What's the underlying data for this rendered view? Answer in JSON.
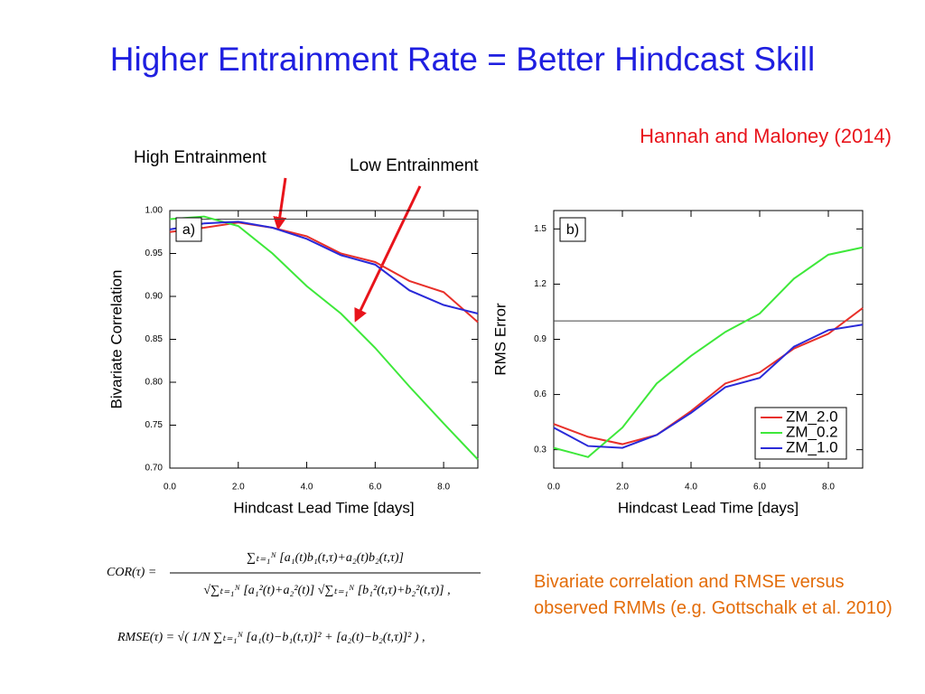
{
  "title": "Higher Entrainment Rate = Better Hindcast Skill",
  "citation": "Hannah and Maloney (2014)",
  "annotations": [
    "High Entrainment",
    "Low Entrainment"
  ],
  "caption": "Bivariate correlation and RMSE versus observed RMMs (e.g. Gottschalk et al. 2010)",
  "formulas": {
    "cor_lhs": "COR(τ) =",
    "cor_numerator": "∑ₜ₌₁ᴺ [a₁(t)b₁(t,τ)+a₂(t)b₂(t,τ)]",
    "cor_denominator": "√∑ₜ₌₁ᴺ [a₁²(t)+a₂²(t)] √∑ₜ₌₁ᴺ [b₁²(t,τ)+b₂²(t,τ)] ,",
    "rmse": "RMSE(τ) = √( 1/N ∑ₜ₌₁ᴺ [a₁(t)−b₁(t,τ)]² + [a₂(t)−b₂(t,τ)]² ) ,"
  },
  "chart_data": [
    {
      "type": "line",
      "panel_label": "a)",
      "x_label": "Hindcast Lead Time [days]",
      "y_label": "Bivariate Correlation",
      "x": [
        0,
        1,
        2,
        3,
        4,
        5,
        6,
        7,
        8,
        9
      ],
      "xlim": [
        0,
        9
      ],
      "xticks": [
        {
          "value": 0,
          "label": "0.0"
        },
        {
          "value": 2,
          "label": "2.0"
        },
        {
          "value": 4,
          "label": "4.0"
        },
        {
          "value": 6,
          "label": "6.0"
        },
        {
          "value": 8,
          "label": "8.0"
        }
      ],
      "ylim": [
        0.7,
        1.0
      ],
      "yticks": [
        {
          "value": 0.7,
          "label": "0.70"
        },
        {
          "value": 0.75,
          "label": "0.75"
        },
        {
          "value": 0.8,
          "label": "0.80"
        },
        {
          "value": 0.85,
          "label": "0.85"
        },
        {
          "value": 0.9,
          "label": "0.90"
        },
        {
          "value": 0.95,
          "label": "0.95"
        },
        {
          "value": 1.0,
          "label": "1.00"
        }
      ],
      "hline": 0.99,
      "series": [
        {
          "color": "#e8302a",
          "values": [
            0.975,
            0.98,
            0.986,
            0.98,
            0.97,
            0.95,
            0.94,
            0.918,
            0.905,
            0.87
          ]
        },
        {
          "color": "#3ee83a",
          "values": [
            0.99,
            0.993,
            0.982,
            0.95,
            0.912,
            0.88,
            0.84,
            0.795,
            0.752,
            0.71
          ]
        },
        {
          "color": "#2a2ad8",
          "values": [
            0.978,
            0.985,
            0.987,
            0.98,
            0.967,
            0.948,
            0.937,
            0.907,
            0.89,
            0.88
          ]
        }
      ]
    },
    {
      "type": "line",
      "panel_label": "b)",
      "x_label": "Hindcast Lead Time [days]",
      "y_label": "RMS Error",
      "x": [
        0,
        1,
        2,
        3,
        4,
        5,
        6,
        7,
        8,
        9
      ],
      "xlim": [
        0,
        9
      ],
      "xticks": [
        {
          "value": 0,
          "label": "0.0"
        },
        {
          "value": 2,
          "label": "2.0"
        },
        {
          "value": 4,
          "label": "4.0"
        },
        {
          "value": 6,
          "label": "6.0"
        },
        {
          "value": 8,
          "label": "8.0"
        }
      ],
      "ylim": [
        0.2,
        1.6
      ],
      "yticks": [
        0.3,
        0.6,
        0.9,
        1.2,
        1.5
      ],
      "hline": 1.0,
      "legend": "lower right",
      "series": [
        {
          "name": "ZM_2.0",
          "color": "#e8302a",
          "values": [
            0.44,
            0.37,
            0.33,
            0.38,
            0.51,
            0.66,
            0.72,
            0.85,
            0.93,
            1.07
          ]
        },
        {
          "name": "ZM_0.2",
          "color": "#3ee83a",
          "values": [
            0.31,
            0.26,
            0.42,
            0.66,
            0.81,
            0.94,
            1.04,
            1.23,
            1.36,
            1.4
          ]
        },
        {
          "name": "ZM_1.0",
          "color": "#2a2ad8",
          "values": [
            0.42,
            0.32,
            0.31,
            0.38,
            0.5,
            0.64,
            0.69,
            0.86,
            0.95,
            0.98
          ]
        }
      ]
    }
  ]
}
